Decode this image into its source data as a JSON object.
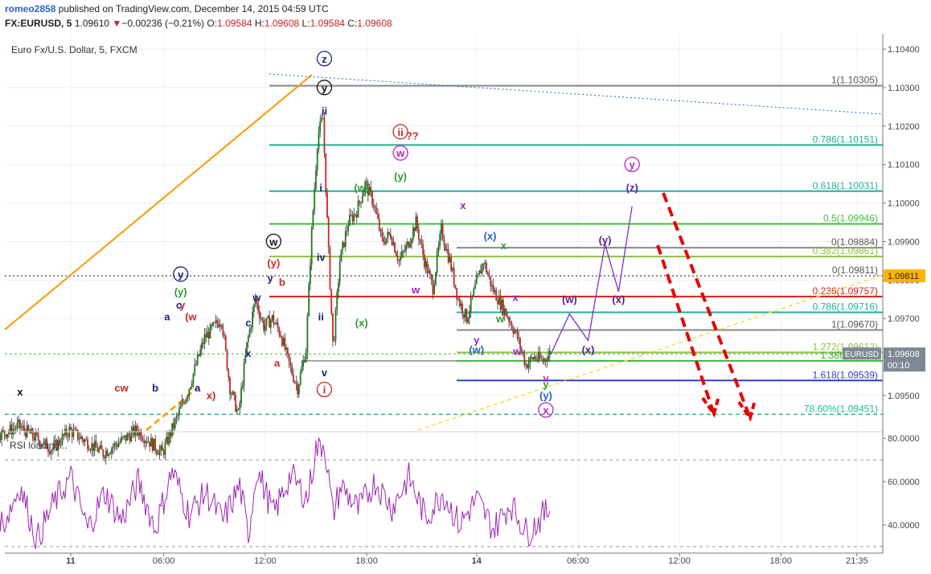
{
  "header": {
    "author": "romeo2858",
    "published_text": " published on TradingView.com, December 14, 2015 04:59 UTC",
    "symbol": "FX:EURUSD, 5",
    "last": "1.09610",
    "change": "−0.00236 (−0.21%)",
    "o_label": "O:",
    "o": "1.09584",
    "h_label": "H:",
    "h": "1.09608",
    "l_label": "L:",
    "l": "1.09584",
    "c_label": "C:",
    "c": "1.09608"
  },
  "chart_title": "Euro Fx/U.S. Dollar, 5, FXCM",
  "price_badge": {
    "symbol": "EURUSD",
    "value": "1.09608",
    "timer": "00:10"
  },
  "level_badge": "1.09811",
  "rsi_label": "RSI loading...",
  "chart_data": [
    {
      "type": "candlestick",
      "symbol": "EURUSD",
      "timeframe": "5",
      "x_ticks": [
        "11",
        "06:00",
        "12:00",
        "18:00",
        "14",
        "06:00",
        "12:00",
        "18:00",
        "21:35"
      ],
      "y_ticks": [
        "1.10400",
        "1.10300",
        "1.10200",
        "1.10100",
        "1.10000",
        "1.09900",
        "1.09800",
        "1.09700",
        "1.09600",
        "1.09500"
      ],
      "ylim": [
        1.0941,
        1.1044
      ],
      "last_price": 1.09608,
      "price_path_hours": [
        [
          -8,
          1.0942
        ],
        [
          -6,
          1.0945
        ],
        [
          -4,
          1.094
        ],
        [
          -3,
          1.0942
        ],
        [
          -1,
          1.0936
        ],
        [
          0,
          1.0941
        ],
        [
          2,
          1.0935
        ],
        [
          4,
          1.0941
        ],
        [
          5.5,
          1.0935
        ],
        [
          7,
          1.0951
        ],
        [
          8,
          1.0965
        ],
        [
          9,
          1.097
        ],
        [
          9.5,
          1.0952
        ],
        [
          10,
          1.0945
        ],
        [
          10.5,
          1.0963
        ],
        [
          11,
          1.0975
        ],
        [
          11.5,
          1.0968
        ],
        [
          12,
          1.097
        ],
        [
          12.5,
          1.0966
        ],
        [
          13,
          1.0958
        ],
        [
          13.5,
          1.0952
        ],
        [
          14,
          1.0962
        ],
        [
          14.3,
          1.099
        ],
        [
          14.7,
          1.1018
        ],
        [
          15.0,
          1.1022
        ],
        [
          15.3,
          1.099
        ],
        [
          15.6,
          1.0962
        ],
        [
          16,
          1.0985
        ],
        [
          16.5,
          1.0995
        ],
        [
          17,
          1.0998
        ],
        [
          17.5,
          1.1005
        ],
        [
          18,
          1.1
        ],
        [
          18.5,
          1.099
        ],
        [
          19,
          1.0992
        ],
        [
          19.5,
          1.0985
        ],
        [
          20,
          1.0989
        ],
        [
          20.5,
          1.0995
        ],
        [
          21,
          1.0985
        ],
        [
          21.5,
          1.0978
        ],
        [
          22,
          1.0993
        ],
        [
          22.5,
          1.0985
        ],
        [
          23,
          1.0975
        ],
        [
          23.5,
          1.097
        ],
        [
          24,
          1.0978
        ],
        [
          24.5,
          1.0985
        ],
        [
          25,
          1.0978
        ],
        [
          25.5,
          1.0974
        ],
        [
          26,
          1.097
        ],
        [
          26.5,
          1.0965
        ],
        [
          27,
          1.0958
        ],
        [
          27.5,
          1.096
        ],
        [
          28,
          1.0959
        ],
        [
          28.4,
          1.0961
        ]
      ],
      "rsi_path_hours": [
        [
          -8,
          55
        ],
        [
          -7,
          68
        ],
        [
          -6,
          48
        ],
        [
          -5,
          62
        ],
        [
          -4,
          40
        ],
        [
          -3,
          58
        ],
        [
          -2,
          33
        ],
        [
          -1,
          50
        ],
        [
          0,
          62
        ],
        [
          1,
          38
        ],
        [
          2,
          55
        ],
        [
          3,
          42
        ],
        [
          4,
          60
        ],
        [
          5,
          38
        ],
        [
          6,
          65
        ],
        [
          7,
          45
        ],
        [
          8,
          55
        ],
        [
          9,
          42
        ],
        [
          10,
          58
        ],
        [
          10.5,
          35
        ],
        [
          11,
          66
        ],
        [
          12,
          45
        ],
        [
          13,
          63
        ],
        [
          14,
          52
        ],
        [
          14.5,
          75
        ],
        [
          15,
          78
        ],
        [
          15.5,
          45
        ],
        [
          16,
          58
        ],
        [
          17,
          47
        ],
        [
          18,
          60
        ],
        [
          19,
          48
        ],
        [
          20,
          62
        ],
        [
          21,
          43
        ],
        [
          22,
          55
        ],
        [
          23,
          40
        ],
        [
          24,
          52
        ],
        [
          25,
          38
        ],
        [
          26,
          50
        ],
        [
          27,
          36
        ],
        [
          28,
          45
        ],
        [
          28.4,
          48
        ]
      ]
    },
    {
      "type": "fibonacci",
      "levels": [
        {
          "label": "1(1.10305)",
          "value": 1.10305,
          "color": "#888888"
        },
        {
          "label": "0.786(1.10151)",
          "value": 1.10151,
          "color": "#20b090"
        },
        {
          "label": "0.618(1.10031)",
          "value": 1.10031,
          "color": "#20b0a0"
        },
        {
          "label": "0.5(1.09946)",
          "value": 1.09946,
          "color": "#40c040"
        },
        {
          "label": "0(1.09884)",
          "value": 1.09884,
          "color": "#888888"
        },
        {
          "label": "0.382(1.09861)",
          "value": 1.09861,
          "color": "#90c040"
        },
        {
          "label": "0(1.09811)",
          "value": 1.09811,
          "color": "#888888"
        },
        {
          "label": "0.236(1.09757)",
          "value": 1.09757,
          "color": "#d02020"
        },
        {
          "label": "0.786(1.09716)",
          "value": 1.09716,
          "color": "#20b0a0"
        },
        {
          "label": "1(1.09670)",
          "value": 1.0967,
          "color": "#888888"
        },
        {
          "label": "1.272(1.09612)",
          "value": 1.09612,
          "color": "#90c040"
        },
        {
          "label": "1.386(1.09...)",
          "value": 1.0959,
          "color": "#40b040"
        },
        {
          "label": "1.618(1.09539)",
          "value": 1.09539,
          "color": "#3040c0"
        },
        {
          "label": "78.60%(1.09451)",
          "value": 1.09451,
          "color": "#20c080"
        }
      ]
    },
    {
      "type": "line",
      "name": "RSI",
      "y_ticks": [
        "80.0000",
        "60.0000",
        "40.0000"
      ],
      "ylim": [
        27,
        83
      ],
      "bands": [
        70,
        30
      ]
    }
  ],
  "wave_labels": [
    {
      "text": "z",
      "t": 15.0,
      "p": 1.10365,
      "color": "#1a237e",
      "circle": true
    },
    {
      "text": "y",
      "t": 15.0,
      "p": 1.1029,
      "color": "#111111",
      "circle": true
    },
    {
      "text": "ii",
      "t": 15.0,
      "p": 1.1023,
      "color": "#1a237e"
    },
    {
      "text": "ii",
      "t": 19.5,
      "p": 1.10175,
      "color": "#c62828",
      "circle": true
    },
    {
      "text": "??",
      "t": 20.2,
      "p": 1.10165,
      "color": "#c62828"
    },
    {
      "text": "w",
      "t": 19.5,
      "p": 1.1012,
      "color": "#c020c0",
      "circle": true
    },
    {
      "text": "(y)",
      "t": 19.5,
      "p": 1.1006,
      "color": "#2e9d2e"
    },
    {
      "text": "(w)",
      "t": 17.2,
      "p": 1.1003,
      "color": "#2e9d2e"
    },
    {
      "text": "i",
      "t": 14.8,
      "p": 1.1003,
      "color": "#1a237e"
    },
    {
      "text": "x",
      "t": 23.2,
      "p": 1.09985,
      "color": "#a020c0"
    },
    {
      "text": "w",
      "t": 12.0,
      "p": 1.0989,
      "color": "#111111",
      "circle": true
    },
    {
      "text": "(y)",
      "t": 12.0,
      "p": 1.09835,
      "color": "#c62828"
    },
    {
      "text": "iv",
      "t": 14.8,
      "p": 1.0985,
      "color": "#1a237e"
    },
    {
      "text": "y",
      "t": 6.5,
      "p": 1.09805,
      "color": "#1a237e",
      "circle": true
    },
    {
      "text": "y",
      "t": 11.8,
      "p": 1.09795,
      "color": "#1a237e"
    },
    {
      "text": "b",
      "t": 12.5,
      "p": 1.09785,
      "color": "#c62828"
    },
    {
      "text": "(y)",
      "t": 6.5,
      "p": 1.0976,
      "color": "#2e9d2e"
    },
    {
      "text": "w",
      "t": 11.0,
      "p": 1.09745,
      "color": "#1a237e"
    },
    {
      "text": "y",
      "t": 6.6,
      "p": 1.09725,
      "color": "#c62828"
    },
    {
      "text": "c",
      "t": 6.4,
      "p": 1.09725,
      "color": "#1a237e"
    },
    {
      "text": "a",
      "t": 5.7,
      "p": 1.09695,
      "color": "#1a237e"
    },
    {
      "text": "(w",
      "t": 7.1,
      "p": 1.09695,
      "color": "#c62828"
    },
    {
      "text": "c",
      "t": 10.5,
      "p": 1.0968,
      "color": "#1a237e"
    },
    {
      "text": "ii",
      "t": 14.8,
      "p": 1.09695,
      "color": "#1a237e"
    },
    {
      "text": "(x)",
      "t": 17.2,
      "p": 1.0968,
      "color": "#2e9d2e"
    },
    {
      "text": "x",
      "t": 10.5,
      "p": 1.096,
      "color": "#1a237e"
    },
    {
      "text": "a",
      "t": 12.2,
      "p": 1.09575,
      "color": "#c62828"
    },
    {
      "text": "v",
      "t": 15.0,
      "p": 1.0955,
      "color": "#1a237e"
    },
    {
      "text": "i",
      "t": 15.0,
      "p": 1.09505,
      "color": "#c62828",
      "circle": true
    },
    {
      "text": "cw",
      "t": 3.0,
      "p": 1.0951,
      "color": "#c62828"
    },
    {
      "text": "b",
      "t": 5.0,
      "p": 1.0951,
      "color": "#1a237e"
    },
    {
      "text": "a",
      "t": 7.5,
      "p": 1.0951,
      "color": "#1a237e"
    },
    {
      "text": "x)",
      "t": 8.3,
      "p": 1.0949,
      "color": "#c62828"
    },
    {
      "text": "x",
      "t": -3.0,
      "p": 1.095,
      "color": "#111111"
    },
    {
      "text": "(x)",
      "t": 24.8,
      "p": 1.09905,
      "color": "#2962c8"
    },
    {
      "text": "x",
      "t": 25.6,
      "p": 1.0988,
      "color": "#2e9d2e"
    },
    {
      "text": "w",
      "t": 20.4,
      "p": 1.09765,
      "color": "#a020c0"
    },
    {
      "text": "x",
      "t": 26.3,
      "p": 1.09745,
      "color": "#a020c0"
    },
    {
      "text": "w",
      "t": 25.4,
      "p": 1.0969,
      "color": "#2e9d2e"
    },
    {
      "text": "y",
      "t": 24.0,
      "p": 1.09635,
      "color": "#a020c0"
    },
    {
      "text": "(w)",
      "t": 24.0,
      "p": 1.0961,
      "color": "#2962c8"
    },
    {
      "text": "w",
      "t": 26.4,
      "p": 1.09605,
      "color": "#a020c0"
    },
    {
      "text": "v",
      "t": 28.1,
      "p": 1.09535,
      "color": "#c020c0"
    },
    {
      "text": "y",
      "t": 28.1,
      "p": 1.0952,
      "color": "#2e9d2e"
    },
    {
      "text": "(y)",
      "t": 28.1,
      "p": 1.0949,
      "color": "#2962c8"
    },
    {
      "text": "x",
      "t": 28.1,
      "p": 1.09452,
      "color": "#c020c0",
      "circle": true
    },
    {
      "text": "(w)",
      "t": 29.5,
      "p": 1.0974,
      "color": "#5a20a0"
    },
    {
      "text": "(x)",
      "t": 30.6,
      "p": 1.0961,
      "color": "#5a20a0"
    },
    {
      "text": "(y)",
      "t": 31.6,
      "p": 1.09895,
      "color": "#5a20a0"
    },
    {
      "text": "(x)",
      "t": 32.4,
      "p": 1.0974,
      "color": "#5a20a0"
    },
    {
      "text": "y",
      "t": 33.2,
      "p": 1.1009,
      "color": "#c020c0",
      "circle": true
    },
    {
      "text": "(z)",
      "t": 33.2,
      "p": 1.1003,
      "color": "#5a20a0"
    }
  ],
  "colors": {
    "up": "#1b7a1b",
    "down": "#c62828",
    "projection": "#7b2fd0",
    "forecast_arrows": "#e60000",
    "trend_orange": "#ff9800",
    "trend_yellow": "#f0e040",
    "trend_blue": "#2962c8",
    "rsi": "#9c27b0",
    "price_badge": "#7d8a96",
    "level_badge": "#ffb300"
  }
}
